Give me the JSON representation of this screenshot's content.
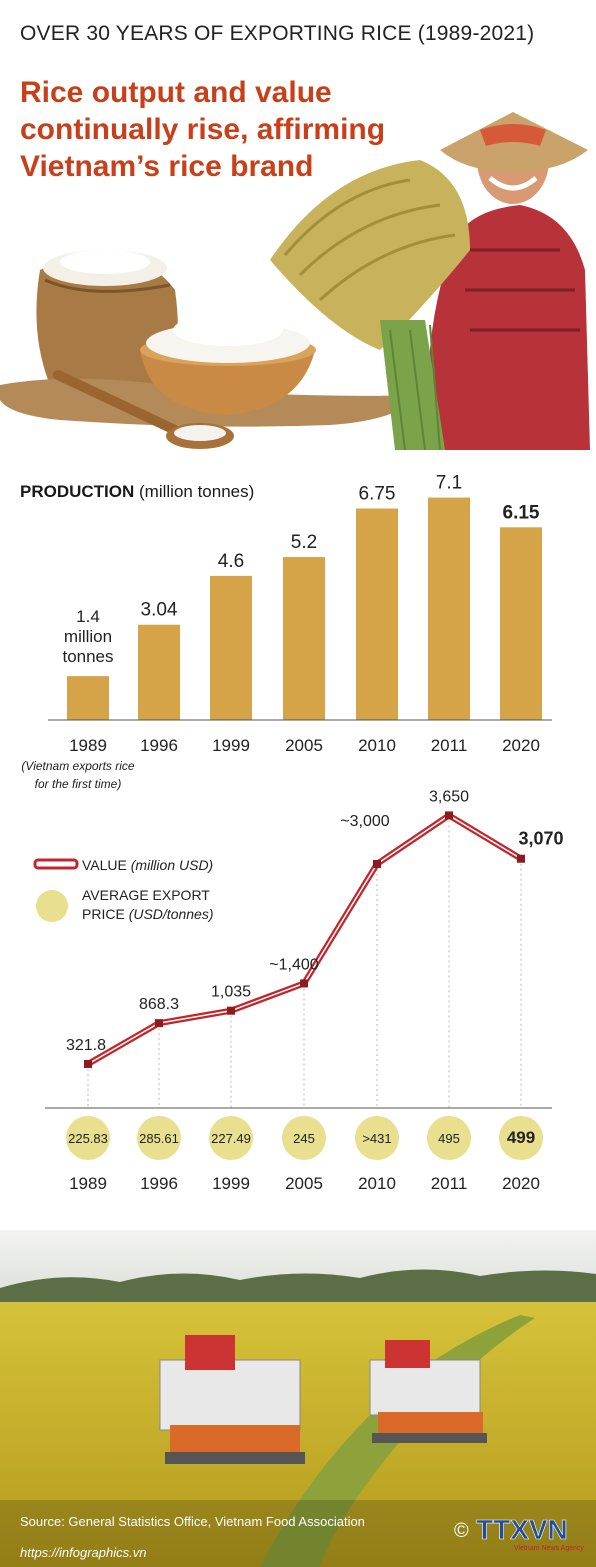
{
  "kicker": "OVER 30 YEARS OF EXPORTING RICE (1989-2021)",
  "headline": "Rice output and value continually rise, affirming Vietnam’s rice brand",
  "colors": {
    "headline": "#c8401a",
    "bar": "#d5a449",
    "line": "#c0262b",
    "bubble": "#e8df8f",
    "marker": "#8e1a1f"
  },
  "chart_data": [
    {
      "type": "bar",
      "title_bold": "PRODUCTION",
      "title_rest": "(million tonnes)",
      "categories": [
        "1989",
        "1996",
        "1999",
        "2005",
        "2010",
        "2011",
        "2020"
      ],
      "values": [
        1.4,
        3.04,
        4.6,
        5.2,
        6.75,
        7.1,
        6.15
      ],
      "data_labels": [
        "1.4",
        "3.04",
        "4.6",
        "5.2",
        "6.75",
        "7.1",
        "6.15"
      ],
      "first_label_suffix": [
        "million",
        "tonnes"
      ],
      "note": [
        "(Vietnam exports rice",
        "for the first time)"
      ],
      "ylim": [
        0,
        7.5
      ]
    },
    {
      "type": "line",
      "series": [
        {
          "name": "VALUE (million USD)",
          "name_main": "VALUE",
          "name_unit": "(million USD)",
          "values": [
            321.8,
            868.3,
            1035,
            1400,
            3000,
            3650,
            3070
          ],
          "labels": [
            "321.8",
            "868.3",
            "1,035",
            "~1,400",
            "~3,000",
            "3,650",
            "3,070"
          ]
        },
        {
          "name": "AVERAGE EXPORT PRICE (USD/tonnes)",
          "name_main1": "AVERAGE EXPORT",
          "name_main2": "PRICE",
          "name_unit": "(USD/tonnes)",
          "values": [
            225.83,
            285.61,
            227.49,
            245,
            431,
            495,
            499
          ],
          "labels": [
            "225.83",
            "285.61",
            "227.49",
            "245",
            ">431",
            "495",
            "499"
          ]
        }
      ],
      "categories": [
        "1989",
        "1996",
        "1999",
        "2005",
        "2010",
        "2011",
        "2020"
      ],
      "ylim": [
        0,
        4000
      ]
    }
  ],
  "source": "Source: General Statistics Office, Vietnam Food Association",
  "website": "https://infographics.vn",
  "logo": {
    "symbol": "©",
    "text": "TTXVN",
    "sub": "Vietnam News Agency"
  }
}
